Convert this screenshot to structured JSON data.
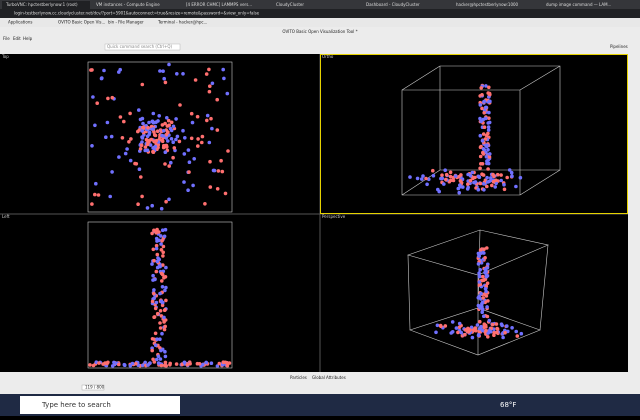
{
  "browser": {
    "tabs": [
      "TurboVNC: hpctestberlynow:1 (root)",
      "VM instances - Compute Engine",
      "[4 ERROR CHMC] LAMMPS vers...",
      "CloudyCluster",
      "Dashboard - CloudyCluster",
      "hacker@hpctestberlynow:1000",
      "dump image command — LAM..."
    ],
    "address": "login-testberlynow.cc.cloudycluster.net/dcv/?port=5901&autoconnect=true&resize=remote&password=&view_only=false"
  },
  "desktop_panel": {
    "items": [
      "Applications",
      "OVITO Basic Open Vis...",
      "bin - File Manager",
      "Terminal - hacker@hpc..."
    ]
  },
  "window": {
    "title": "OVITO Basic Open Visualization Tool *",
    "menu": [
      "File",
      "Edit",
      "Help"
    ],
    "search": "Quick command search (Ctrl+Q)",
    "pipelines": "Pipelines"
  },
  "viewports": [
    "Top",
    "Ortho",
    "Left",
    "Perspective"
  ],
  "data_inspector": {
    "tabs": [
      "Particles",
      "Global Attributes"
    ]
  },
  "timeline": {
    "frame": "119 / 800"
  },
  "taskbar": {
    "search": "Type here to search",
    "weather": "68°F"
  }
}
